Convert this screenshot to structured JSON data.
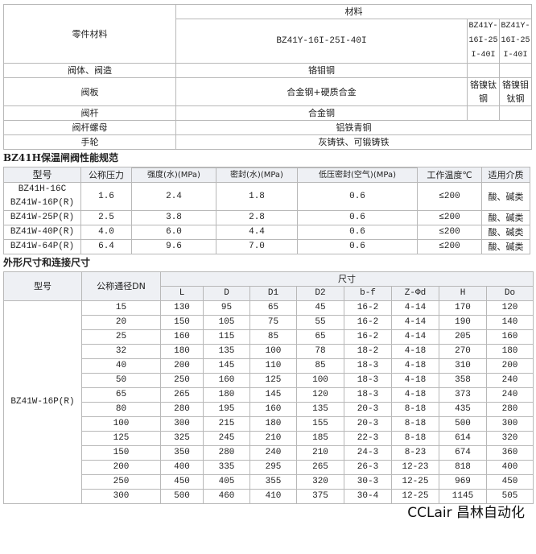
{
  "materials": {
    "header_part": "零件材料",
    "header_material": "材料",
    "models": [
      "BZ41Y-16I-25I-40I",
      "BZ41Y-16I-25I-40I",
      "BZ41Y-16I-25I-40I"
    ],
    "rows": [
      {
        "part": "阀体、阀造",
        "m1": "铬钼钢",
        "m2": "",
        "m3": ""
      },
      {
        "part": "阀板",
        "m1": "合金钢+硬质合金",
        "m2": "铬镍钛钢",
        "m3": "铬镍钼钛钢"
      },
      {
        "part": "阀杆",
        "m1": "合金钢",
        "m2": "",
        "m3": ""
      },
      {
        "part": "阀杆螺母",
        "m1": "铝铁青铜"
      },
      {
        "part": "手轮",
        "m1": "灰铸铁、可锻铸铁"
      }
    ]
  },
  "performance": {
    "title": "BZ41H保温闸阀性能规范",
    "headers": [
      "型号",
      "公称压力",
      "强度(水)(MPa)",
      "密封(水)(MPa)",
      "低压密封(空气)(MPa)",
      "工作温度℃",
      "适用介质"
    ],
    "rows": [
      {
        "model": "BZ41H-16C",
        "model2": "BZ41W-16P(R)",
        "pn": "1.6",
        "strength": "2.4",
        "seal": "1.8",
        "low": "0.6",
        "temp": "≤200",
        "medium": "酸、碱类"
      },
      {
        "model": "BZ41W-25P(R)",
        "pn": "2.5",
        "strength": "3.8",
        "seal": "2.8",
        "low": "0.6",
        "temp": "≤200",
        "medium": "酸、碱类"
      },
      {
        "model": "BZ41W-40P(R)",
        "pn": "4.0",
        "strength": "6.0",
        "seal": "4.4",
        "low": "0.6",
        "temp": "≤200",
        "medium": "酸、碱类"
      },
      {
        "model": "BZ41W-64P(R)",
        "pn": "6.4",
        "strength": "9.6",
        "seal": "7.0",
        "low": "0.6",
        "temp": "≤200",
        "medium": "酸、碱类"
      }
    ]
  },
  "dimensions": {
    "title": "外形尺寸和连接尺寸",
    "h_model": "型号",
    "h_dn": "公称通径DN",
    "h_size": "尺寸",
    "columns": [
      "L",
      "D",
      "D1",
      "D2",
      "b-f",
      "Z-Φd",
      "H",
      "Do"
    ],
    "model": "BZ41W-16P(R)",
    "rows": [
      [
        "15",
        "130",
        "95",
        "65",
        "45",
        "16-2",
        "4-14",
        "170",
        "120"
      ],
      [
        "20",
        "150",
        "105",
        "75",
        "55",
        "16-2",
        "4-14",
        "190",
        "140"
      ],
      [
        "25",
        "160",
        "115",
        "85",
        "65",
        "16-2",
        "4-14",
        "205",
        "160"
      ],
      [
        "32",
        "180",
        "135",
        "100",
        "78",
        "18-2",
        "4-18",
        "270",
        "180"
      ],
      [
        "40",
        "200",
        "145",
        "110",
        "85",
        "18-3",
        "4-18",
        "310",
        "200"
      ],
      [
        "50",
        "250",
        "160",
        "125",
        "100",
        "18-3",
        "4-18",
        "358",
        "240"
      ],
      [
        "65",
        "265",
        "180",
        "145",
        "120",
        "18-3",
        "4-18",
        "373",
        "240"
      ],
      [
        "80",
        "280",
        "195",
        "160",
        "135",
        "20-3",
        "8-18",
        "435",
        "280"
      ],
      [
        "100",
        "300",
        "215",
        "180",
        "155",
        "20-3",
        "8-18",
        "500",
        "300"
      ],
      [
        "125",
        "325",
        "245",
        "210",
        "185",
        "22-3",
        "8-18",
        "614",
        "320"
      ],
      [
        "150",
        "350",
        "280",
        "240",
        "210",
        "24-3",
        "8-23",
        "674",
        "360"
      ],
      [
        "200",
        "400",
        "335",
        "295",
        "265",
        "26-3",
        "12-23",
        "818",
        "400"
      ],
      [
        "250",
        "450",
        "405",
        "355",
        "320",
        "30-3",
        "12-25",
        "969",
        "450"
      ],
      [
        "300",
        "500",
        "460",
        "410",
        "375",
        "30-4",
        "12-25",
        "1145",
        "505"
      ]
    ]
  },
  "watermark": "CCLair 昌林自动化"
}
